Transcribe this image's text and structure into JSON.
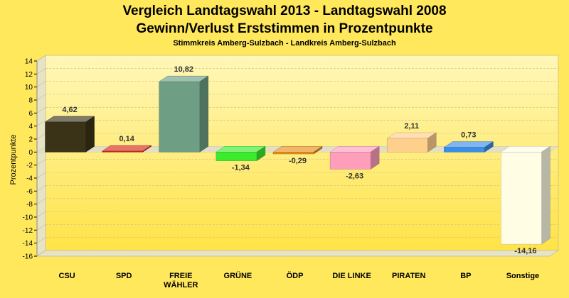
{
  "chart_data": {
    "type": "bar",
    "title": "Vergleich Landtagswahl 2013 - Landtagswahl 2008",
    "subtitle": "Gewinn/Verlust Erststimmen in Prozentpunkte",
    "subsubtitle": "Stimmkreis Amberg-Sulzbach - Landkreis Amberg-Sulzbach",
    "ylabel": "Prozentpunkte",
    "xlabel": "",
    "ylim": [
      -16,
      14
    ],
    "yticks": [
      14,
      12,
      10,
      8,
      6,
      4,
      2,
      0,
      -2,
      -4,
      -6,
      -8,
      -10,
      -12,
      -14,
      -16
    ],
    "grid": true,
    "categories": [
      "CSU",
      "SPD",
      "FREIE WÄHLER",
      "GRÜNE",
      "ÖDP",
      "DIE LINKE",
      "PIRATEN",
      "BP",
      "Sonstige"
    ],
    "category_lines": [
      [
        "CSU"
      ],
      [
        "SPD"
      ],
      [
        "FREIE",
        "WÄHLER"
      ],
      [
        "GRÜNE"
      ],
      [
        "ÖDP"
      ],
      [
        "DIE LINKE"
      ],
      [
        "PIRATEN"
      ],
      [
        "BP"
      ],
      [
        "Sonstige"
      ]
    ],
    "values": [
      4.62,
      0.14,
      10.82,
      -1.34,
      -0.29,
      -2.63,
      2.11,
      0.73,
      -14.16
    ],
    "value_labels": [
      "4,62",
      "0,14",
      "10,82",
      "-1,34",
      "-0,29",
      "-2,63",
      "2,11",
      "0,73",
      "-14,16"
    ],
    "colors": [
      "#3A3318",
      "#D42A1C",
      "#6E9F84",
      "#3DEB2E",
      "#E8901C",
      "#FF9EBB",
      "#FFD08C",
      "#3A8EE6",
      "#FFFDE4"
    ]
  }
}
